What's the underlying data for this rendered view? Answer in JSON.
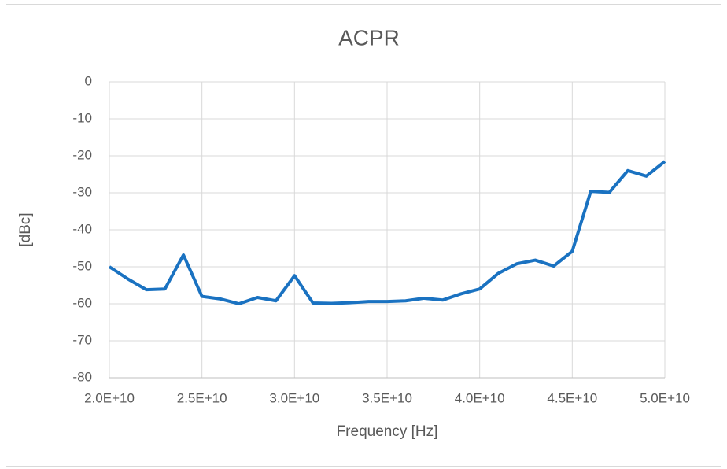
{
  "chart_data": {
    "type": "line",
    "title": "ACPR",
    "x_label": "Frequency [Hz]",
    "y_label": "[dBc]",
    "x": [
      20000000000,
      21000000000,
      22000000000,
      23000000000,
      24000000000,
      25000000000,
      26000000000,
      27000000000,
      28000000000,
      29000000000,
      30000000000,
      31000000000,
      32000000000,
      33000000000,
      34000000000,
      35000000000,
      36000000000,
      37000000000,
      38000000000,
      39000000000,
      40000000000,
      41000000000,
      42000000000,
      43000000000,
      44000000000,
      45000000000,
      46000000000,
      47000000000,
      48000000000,
      49000000000,
      50000000000
    ],
    "series": [
      {
        "name": "ACPR",
        "color": "#1a72c1",
        "values": [
          -50,
          -53.3,
          -56.2,
          -56,
          -46.8,
          -58,
          -58.7,
          -60,
          -58.3,
          -59.2,
          -52.4,
          -59.8,
          -59.9,
          -59.7,
          -59.4,
          -59.4,
          -59.2,
          -58.5,
          -59,
          -57.3,
          -56,
          -51.8,
          -49.2,
          -48.2,
          -49.8,
          -45.8,
          -29.6,
          -29.9,
          -24,
          -25.5,
          -21.5
        ]
      }
    ],
    "xlim": [
      20000000000,
      50000000000
    ],
    "xticks": [
      {
        "value": 20000000000,
        "label": "2.0E+10"
      },
      {
        "value": 25000000000,
        "label": "2.5E+10"
      },
      {
        "value": 30000000000,
        "label": "3.0E+10"
      },
      {
        "value": 35000000000,
        "label": "3.5E+10"
      },
      {
        "value": 40000000000,
        "label": "4.0E+10"
      },
      {
        "value": 45000000000,
        "label": "4.5E+10"
      },
      {
        "value": 50000000000,
        "label": "5.0E+10"
      }
    ],
    "ylim": [
      -80,
      0
    ],
    "yticks": [
      0,
      -10,
      -20,
      -30,
      -40,
      -50,
      -60,
      -70,
      -80
    ],
    "grid": true
  }
}
